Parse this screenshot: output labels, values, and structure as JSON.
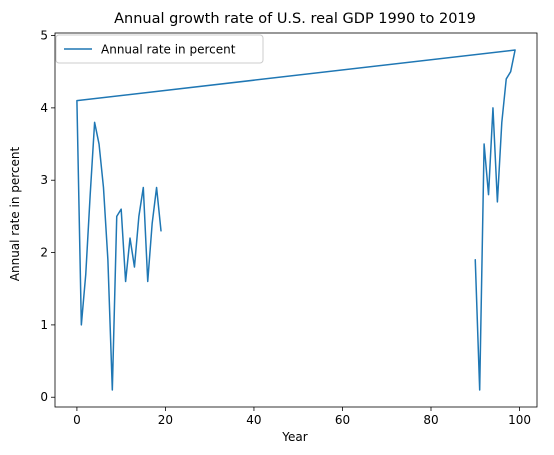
{
  "chart_data": {
    "type": "line",
    "title": "Annual growth rate of U.S. real GDP 1990 to 2019",
    "xlabel": "Year",
    "ylabel": "Annual rate in percent",
    "xlim": [
      -4.95,
      103.95
    ],
    "ylim": [
      -0.135,
      5.035
    ],
    "xticks": [
      0,
      20,
      40,
      60,
      80,
      100
    ],
    "yticks": [
      0,
      1,
      2,
      3,
      4,
      5
    ],
    "grid": false,
    "legend": {
      "position": "top-left"
    },
    "series": [
      {
        "name": "Annual rate in percent",
        "color": "#1f77b4",
        "x": [
          90,
          91,
          92,
          93,
          94,
          95,
          96,
          97,
          98,
          99,
          0,
          1,
          2,
          3,
          4,
          5,
          6,
          7,
          8,
          9,
          10,
          11,
          12,
          13,
          14,
          15,
          16,
          17,
          18,
          19
        ],
        "y": [
          1.9,
          0.1,
          3.5,
          2.8,
          4.0,
          2.7,
          3.8,
          4.4,
          4.5,
          4.8,
          4.1,
          1.0,
          1.7,
          2.8,
          3.8,
          3.5,
          2.9,
          1.9,
          0.1,
          2.5,
          2.6,
          1.6,
          2.2,
          1.8,
          2.5,
          2.9,
          1.6,
          2.4,
          2.9,
          2.3
        ]
      }
    ]
  }
}
